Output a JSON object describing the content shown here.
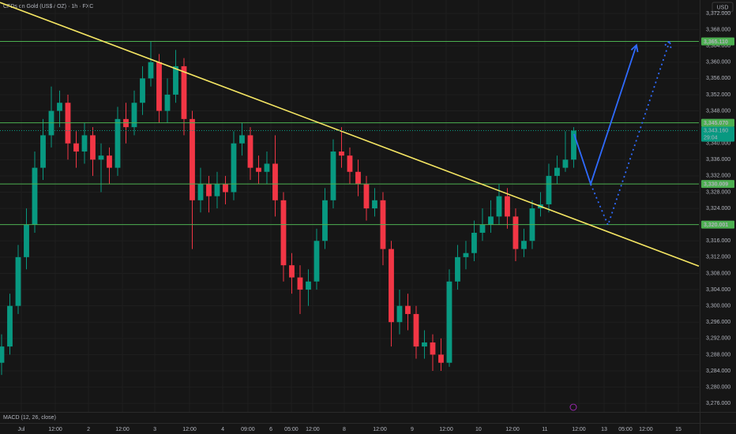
{
  "chart_data": {
    "type": "candlestick",
    "title": "CFDs on Gold (US$ / OZ) · 1h · FXC",
    "currency": "USD",
    "indicator_label": "MACD (12, 26, close)",
    "up_color": "#089981",
    "down_color": "#f23645",
    "grid": true,
    "open": [
      3286,
      3290,
      3300,
      3312,
      3320,
      3334,
      3342,
      3348,
      3350,
      3340,
      3338,
      3342,
      3336,
      3337,
      3334,
      3346,
      3344,
      3350,
      3356,
      3360,
      3348,
      3352,
      3359,
      3346,
      3326,
      3330,
      3327,
      3330,
      3328,
      3340,
      3342,
      3334,
      3333,
      3335,
      3326,
      3310,
      3307,
      3304,
      3306,
      3316,
      3326,
      3338,
      3337,
      3333,
      3330,
      3324,
      3326,
      3314,
      3296,
      3300,
      3298,
      3290,
      3291,
      3288,
      3286,
      3306,
      3312,
      3313,
      3318,
      3320,
      3322,
      3327,
      3322,
      3314,
      3316,
      3324,
      3325,
      3332,
      3334,
      3336
    ],
    "high": [
      3293,
      3303,
      3315,
      3324,
      3338,
      3346,
      3354,
      3353,
      3352,
      3343,
      3345,
      3344,
      3340,
      3339,
      3349,
      3350,
      3353,
      3359,
      3365,
      3362,
      3356,
      3363,
      3361,
      3348,
      3334,
      3332,
      3333,
      3332,
      3343,
      3345,
      3344,
      3337,
      3338,
      3342,
      3328,
      3313,
      3310,
      3309,
      3319,
      3329,
      3341,
      3344,
      3339,
      3336,
      3332,
      3329,
      3328,
      3316,
      3304,
      3303,
      3300,
      3294,
      3293,
      3292,
      3309,
      3315,
      3316,
      3321,
      3324,
      3326,
      3330,
      3329,
      3324,
      3319,
      3326,
      3328,
      3335,
      3337,
      3343,
      3344
    ],
    "low": [
      3283,
      3288,
      3298,
      3309,
      3318,
      3331,
      3339,
      3344,
      3336,
      3334,
      3335,
      3332,
      3328,
      3330,
      3332,
      3340,
      3342,
      3347,
      3354,
      3345,
      3345,
      3350,
      3342,
      3314,
      3323,
      3323,
      3324,
      3325,
      3326,
      3337,
      3331,
      3330,
      3330,
      3322,
      3306,
      3303,
      3298,
      3300,
      3304,
      3314,
      3324,
      3334,
      3330,
      3327,
      3321,
      3322,
      3310,
      3290,
      3293,
      3294,
      3287,
      3287,
      3284,
      3284,
      3285,
      3304,
      3309,
      3311,
      3316,
      3318,
      3320,
      3319,
      3311,
      3312,
      3314,
      3322,
      3323,
      3330,
      3333,
      3334
    ],
    "close": [
      3290,
      3300,
      3312,
      3320,
      3334,
      3342,
      3348,
      3350,
      3340,
      3338,
      3342,
      3336,
      3337,
      3334,
      3346,
      3344,
      3350,
      3356,
      3360,
      3348,
      3352,
      3359,
      3346,
      3326,
      3330,
      3327,
      3330,
      3328,
      3340,
      3342,
      3334,
      3333,
      3335,
      3326,
      3310,
      3307,
      3304,
      3306,
      3316,
      3326,
      3338,
      3337,
      3333,
      3330,
      3324,
      3326,
      3314,
      3296,
      3300,
      3298,
      3290,
      3291,
      3288,
      3286,
      3306,
      3312,
      3313,
      3318,
      3320,
      3322,
      3327,
      3322,
      3314,
      3316,
      3324,
      3325,
      3332,
      3334,
      3336,
      3343.16
    ],
    "xlim": [
      -0.19,
      84.1
    ],
    "ylim": [
      3273.9,
      3375.3
    ],
    "xticks": [
      {
        "value": 2.38,
        "label": "Jul"
      },
      {
        "value": 6.48,
        "label": "12:00"
      },
      {
        "value": 10.48,
        "label": "2"
      },
      {
        "value": 14.57,
        "label": "12:00"
      },
      {
        "value": 18.48,
        "label": "3"
      },
      {
        "value": 22.67,
        "label": "12:00"
      },
      {
        "value": 26.67,
        "label": "4"
      },
      {
        "value": 29.71,
        "label": "09:00"
      },
      {
        "value": 32.48,
        "label": "6"
      },
      {
        "value": 34.95,
        "label": "05:00"
      },
      {
        "value": 37.52,
        "label": "12:00"
      },
      {
        "value": 41.33,
        "label": "8"
      },
      {
        "value": 45.62,
        "label": "12:00"
      },
      {
        "value": 49.52,
        "label": "9"
      },
      {
        "value": 53.62,
        "label": "12:00"
      },
      {
        "value": 57.52,
        "label": "10"
      },
      {
        "value": 61.62,
        "label": "12:00"
      },
      {
        "value": 65.52,
        "label": "11"
      },
      {
        "value": 69.62,
        "label": "12:00"
      },
      {
        "value": 72.67,
        "label": "13"
      },
      {
        "value": 75.24,
        "label": "05:00"
      },
      {
        "value": 77.71,
        "label": "12:00"
      },
      {
        "value": 81.62,
        "label": "15"
      }
    ],
    "yticks": [
      {
        "value": 3372,
        "label": "3,372.000"
      },
      {
        "value": 3368,
        "label": "3,368.000"
      },
      {
        "value": 3364,
        "label": "3,364.000"
      },
      {
        "value": 3360,
        "label": "3,360.000"
      },
      {
        "value": 3356,
        "label": "3,356.000"
      },
      {
        "value": 3352,
        "label": "3,352.000"
      },
      {
        "value": 3348,
        "label": "3,348.000"
      },
      {
        "value": 3344,
        "label": "3,344.000"
      },
      {
        "value": 3340,
        "label": "3,340.000"
      },
      {
        "value": 3336,
        "label": "3,336.000"
      },
      {
        "value": 3332,
        "label": "3,332.000"
      },
      {
        "value": 3328,
        "label": "3,328.000"
      },
      {
        "value": 3324,
        "label": "3,324.000"
      },
      {
        "value": 3320,
        "label": "3,320.000"
      },
      {
        "value": 3316,
        "label": "3,316.000"
      },
      {
        "value": 3312,
        "label": "3,312.000"
      },
      {
        "value": 3308,
        "label": "3,308.000"
      },
      {
        "value": 3304,
        "label": "3,304.000"
      },
      {
        "value": 3300,
        "label": "3,300.000"
      },
      {
        "value": 3296,
        "label": "3,296.000"
      },
      {
        "value": 3292,
        "label": "3,292.000"
      },
      {
        "value": 3288,
        "label": "3,288.000"
      },
      {
        "value": 3284,
        "label": "3,284.000"
      },
      {
        "value": 3280,
        "label": "3,280.000"
      },
      {
        "value": 3276,
        "label": "3,276.000"
      }
    ],
    "levels": {
      "color": "#4caf50",
      "values": [
        {
          "value": 3365.11,
          "label": "3,365.110"
        },
        {
          "value": 3345.07,
          "label": "3,345.070"
        },
        {
          "value": 3330.009,
          "label": "3,330.009"
        },
        {
          "value": 3320.001,
          "label": "3,320.001"
        }
      ]
    },
    "trendline": {
      "color": "#f5e663",
      "x": [
        -0.19,
        84.1
      ],
      "y": [
        3374.7,
        3309.8
      ]
    },
    "projections": [
      {
        "color": "#2f6bff",
        "style": "solid",
        "x": [
          69.05,
          71.05,
          76.57
        ],
        "y": [
          3342.3,
          3330.0,
          3364.2
        ]
      },
      {
        "color": "#2f6bff",
        "style": "dotted",
        "x": [
          71.05,
          73.14,
          80.57
        ],
        "y": [
          3330.0,
          3319.9,
          3365.2
        ]
      }
    ],
    "current_price": {
      "value": 3343.16,
      "label": "3,343.160",
      "countdown": "29:04"
    }
  }
}
